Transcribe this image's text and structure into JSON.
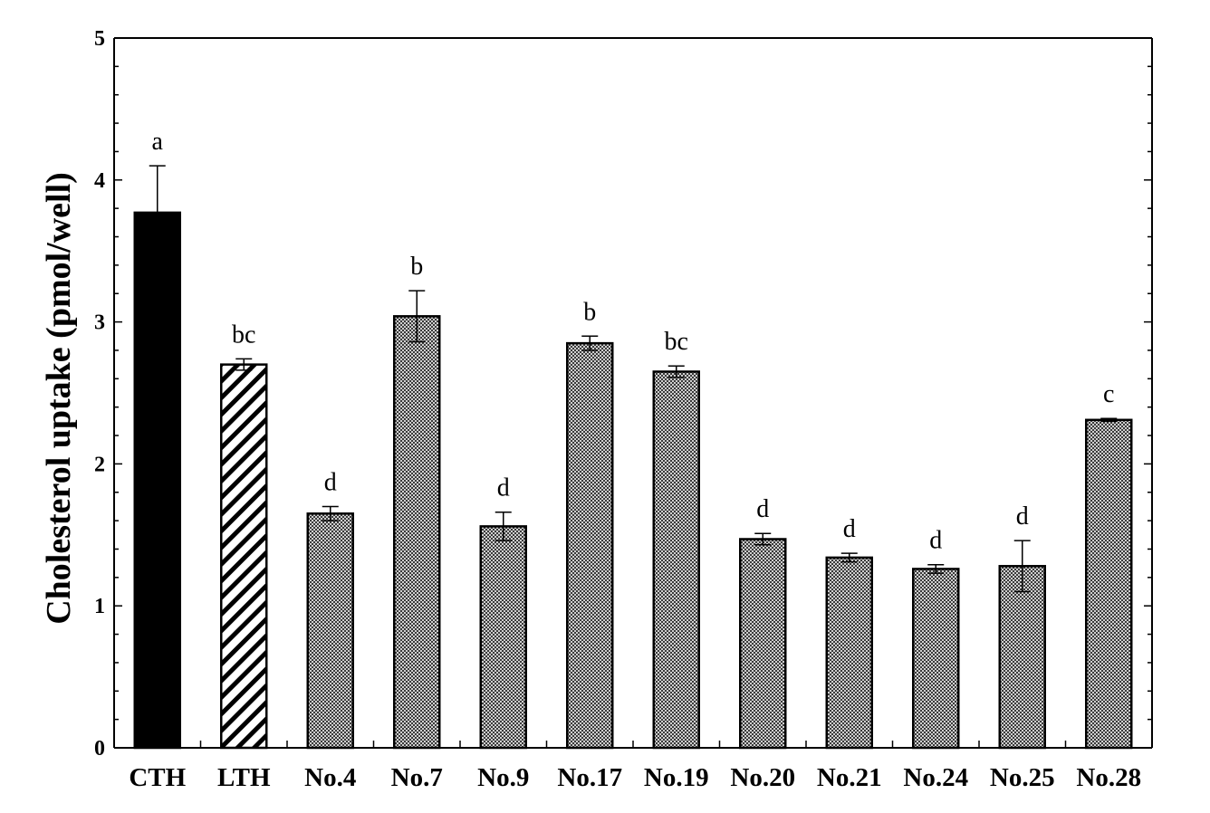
{
  "chart_data": {
    "type": "bar",
    "title": "",
    "xlabel": "",
    "ylabel": "Cholesterol uptake (pmol/well)",
    "ylim": [
      0,
      5
    ],
    "yticks": [
      0,
      1,
      2,
      3,
      4,
      5
    ],
    "grid": false,
    "legend": "none",
    "categories": [
      "CTH",
      "LTH",
      "No.4",
      "No.7",
      "No.9",
      "No.17",
      "No.19",
      "No.20",
      "No.21",
      "No.24",
      "No.25",
      "No.28"
    ],
    "values": [
      3.77,
      2.7,
      1.65,
      3.04,
      1.56,
      2.85,
      2.65,
      1.47,
      1.34,
      1.26,
      1.28,
      2.31
    ],
    "errors": [
      0.33,
      0.04,
      0.05,
      0.18,
      0.1,
      0.05,
      0.04,
      0.04,
      0.03,
      0.03,
      0.18,
      0.01
    ],
    "significance": [
      "a",
      "bc",
      "d",
      "b",
      "d",
      "b",
      "bc",
      "d",
      "d",
      "d",
      "d",
      "c"
    ],
    "fills": [
      "solid",
      "diagonal-hatch",
      "crosshatch",
      "crosshatch",
      "crosshatch",
      "crosshatch",
      "crosshatch",
      "crosshatch",
      "crosshatch",
      "crosshatch",
      "crosshatch",
      "crosshatch"
    ],
    "colors": {
      "bar": "#000000",
      "crosshatch": "#8a8a8a",
      "background": "#ffffff"
    }
  }
}
